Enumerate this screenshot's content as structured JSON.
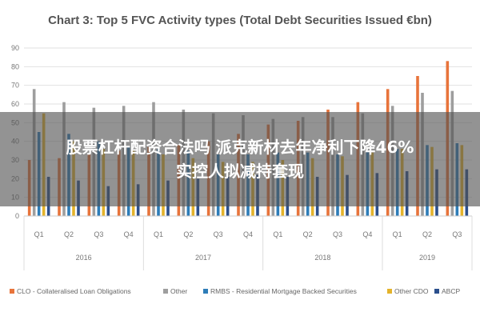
{
  "chart_data": {
    "type": "bar",
    "title": "Chart 3: Top 5 FVC Activity types (Total Debt Securities Issued €bn)",
    "ylim": [
      0,
      90
    ],
    "yticks": [
      0,
      10,
      20,
      30,
      40,
      50,
      60,
      70,
      80,
      90
    ],
    "grid": true,
    "legend_position": "bottom",
    "categories": [
      "Q1",
      "Q2",
      "Q3",
      "Q4",
      "Q1",
      "Q2",
      "Q3",
      "Q4",
      "Q1",
      "Q2",
      "Q3",
      "Q4",
      "Q1",
      "Q2",
      "Q3"
    ],
    "years": [
      {
        "label": "2016",
        "quarters": 4
      },
      {
        "label": "2017",
        "quarters": 4
      },
      {
        "label": "2018",
        "quarters": 4
      },
      {
        "label": "2019",
        "quarters": 3
      }
    ],
    "series": [
      {
        "name": "CLO - Collateralised Loan Obligations",
        "color": "#E8743B",
        "values": [
          30,
          31,
          33,
          35,
          37,
          38,
          40,
          44,
          49,
          51,
          57,
          61,
          68,
          75,
          83
        ]
      },
      {
        "name": "Other",
        "color": "#9E9E9E",
        "values": [
          68,
          61,
          58,
          59,
          61,
          57,
          55,
          54,
          52,
          53,
          53,
          55,
          59,
          66,
          67
        ]
      },
      {
        "name": "RMBS - Residential Mortgage Backed Securities",
        "color": "#2E7DB8",
        "values": [
          45,
          44,
          40,
          37,
          36,
          35,
          33,
          33,
          34,
          34,
          33,
          35,
          36,
          38,
          39
        ]
      },
      {
        "name": "Other CDO",
        "color": "#E4B32B",
        "values": [
          55,
          40,
          36,
          35,
          33,
          31,
          29,
          29,
          30,
          31,
          32,
          34,
          36,
          37,
          38
        ]
      },
      {
        "name": "ABCP",
        "color": "#2B4F8C",
        "values": [
          21,
          19,
          16,
          17,
          19,
          20,
          21,
          22,
          21,
          21,
          22,
          23,
          24,
          25,
          25
        ]
      }
    ]
  },
  "overlay": {
    "line1": "股票杠杆配资合法吗 派克新材去年净利下降46%",
    "line2": "实控人拟减持套现"
  }
}
